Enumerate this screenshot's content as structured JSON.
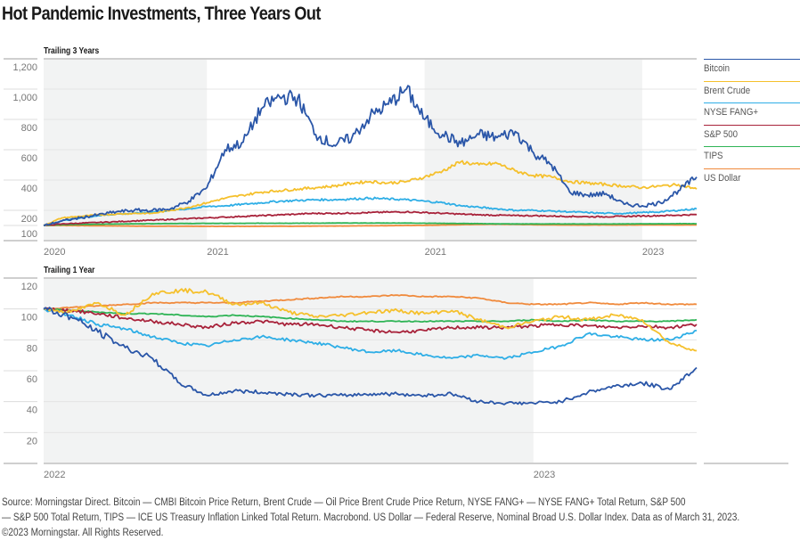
{
  "title": "Hot Pandemic Investments, Three Years Out",
  "legend": [
    {
      "name": "Bitcoin",
      "color": "#2a56a8"
    },
    {
      "name": "Brent Crude",
      "color": "#f5c02c"
    },
    {
      "name": "NYSE FANG+",
      "color": "#2eaee6"
    },
    {
      "name": "S&P 500",
      "color": "#a8223a"
    },
    {
      "name": "TIPS",
      "color": "#2fb456"
    },
    {
      "name": "US Dollar",
      "color": "#f08a3c"
    }
  ],
  "footer": {
    "line1": "Source: Morningstar Direct. Bitcoin — CMBI Bitcoin Price Return, Brent Crude — Oil Price Brent Crude Price Return, NYSE FANG+ — NYSE FANG+ Total Return, S&P 500",
    "line2": "— S&P 500 Total Return, TIPS — ICE US Treasury Inflation Linked Total Return. Macrobond. US Dollar — Federal Reserve, Nominal Broad U.S. Dollar Index. Data as of March 31, 2023.",
    "line3": "©2023 Morningstar. All Rights Reserved."
  },
  "chart_data": [
    {
      "type": "line",
      "title": "Trailing 3 Years",
      "xlabel": "",
      "ylabel": "",
      "x_ticks": [
        "2020",
        "2021",
        "2021",
        "2023"
      ],
      "x_range": [
        0,
        36
      ],
      "x_tick_positions": [
        0,
        9,
        21,
        33
      ],
      "shaded_bands": [
        [
          0,
          9
        ],
        [
          21,
          33
        ]
      ],
      "y_ticks": [
        100,
        200,
        400,
        600,
        800,
        1000,
        1200
      ],
      "ylim": [
        0,
        1200
      ],
      "grid": true,
      "legend_position": "right",
      "x": [
        0,
        1,
        2,
        3,
        4,
        5,
        6,
        7,
        8,
        9,
        10,
        11,
        12,
        13,
        14,
        15,
        16,
        17,
        18,
        19,
        20,
        21,
        22,
        23,
        24,
        25,
        26,
        27,
        28,
        29,
        30,
        31,
        32,
        33,
        34,
        35,
        36
      ],
      "series": [
        {
          "name": "Bitcoin",
          "values": [
            100,
            130,
            150,
            170,
            190,
            200,
            200,
            210,
            260,
            350,
            600,
            650,
            870,
            950,
            940,
            700,
            630,
            680,
            820,
            900,
            1000,
            800,
            700,
            640,
            700,
            680,
            720,
            580,
            500,
            320,
            300,
            310,
            240,
            230,
            250,
            330,
            420
          ]
        },
        {
          "name": "Brent Crude",
          "values": [
            100,
            150,
            160,
            170,
            175,
            180,
            180,
            200,
            220,
            250,
            280,
            300,
            320,
            330,
            340,
            350,
            360,
            380,
            390,
            380,
            390,
            420,
            460,
            520,
            500,
            510,
            460,
            430,
            420,
            390,
            380,
            370,
            360,
            350,
            360,
            370,
            340
          ]
        },
        {
          "name": "NYSE FANG+",
          "values": [
            100,
            130,
            150,
            165,
            175,
            180,
            190,
            200,
            210,
            225,
            230,
            240,
            250,
            260,
            265,
            270,
            270,
            275,
            280,
            275,
            270,
            260,
            250,
            230,
            220,
            210,
            200,
            200,
            195,
            190,
            185,
            180,
            180,
            185,
            190,
            200,
            210
          ]
        },
        {
          "name": "S&P 500",
          "values": [
            100,
            110,
            115,
            120,
            125,
            130,
            135,
            140,
            145,
            150,
            155,
            160,
            165,
            170,
            175,
            180,
            180,
            182,
            185,
            188,
            190,
            185,
            180,
            175,
            170,
            168,
            165,
            165,
            162,
            160,
            158,
            158,
            160,
            163,
            165,
            168,
            172
          ]
        },
        {
          "name": "TIPS",
          "values": [
            100,
            105,
            107,
            108,
            110,
            111,
            112,
            113,
            113,
            114,
            114,
            114,
            115,
            115,
            115,
            115,
            116,
            116,
            116,
            116,
            116,
            115,
            114,
            113,
            112,
            111,
            110,
            110,
            110,
            110,
            110,
            110,
            110,
            111,
            111,
            112,
            112
          ]
        },
        {
          "name": "US Dollar",
          "values": [
            100,
            100,
            99,
            98,
            97,
            96,
            95,
            95,
            95,
            94,
            94,
            94,
            95,
            95,
            95,
            96,
            96,
            97,
            98,
            99,
            100,
            101,
            103,
            105,
            107,
            108,
            107,
            105,
            104,
            103,
            103,
            103,
            103,
            104,
            104,
            103,
            104
          ]
        }
      ]
    },
    {
      "type": "line",
      "title": "Trailing 1 Year",
      "xlabel": "",
      "ylabel": "",
      "x_ticks": [
        "2022",
        "2023"
      ],
      "x_range": [
        0,
        12
      ],
      "x_tick_positions": [
        0,
        9
      ],
      "shaded_bands": [
        [
          0,
          9
        ]
      ],
      "y_ticks": [
        20,
        40,
        60,
        80,
        100,
        120
      ],
      "ylim": [
        0,
        120
      ],
      "grid": true,
      "legend_position": "right",
      "x": [
        0,
        0.5,
        1,
        1.5,
        2,
        2.5,
        3,
        3.5,
        4,
        4.5,
        5,
        5.5,
        6,
        6.5,
        7,
        7.5,
        8,
        8.5,
        9,
        9.5,
        10,
        10.5,
        11,
        11.5,
        12
      ],
      "series": [
        {
          "name": "Bitcoin",
          "values": [
            100,
            95,
            85,
            75,
            68,
            52,
            44,
            47,
            46,
            45,
            44,
            44,
            45,
            45,
            44,
            45,
            40,
            39,
            39,
            40,
            46,
            50,
            52,
            48,
            62
          ]
        },
        {
          "name": "Brent Crude",
          "values": [
            100,
            98,
            104,
            96,
            110,
            112,
            111,
            103,
            104,
            98,
            95,
            96,
            98,
            99,
            97,
            99,
            93,
            88,
            92,
            95,
            93,
            96,
            93,
            78,
            73
          ]
        },
        {
          "name": "NYSE FANG+",
          "values": [
            100,
            96,
            90,
            87,
            82,
            78,
            76,
            80,
            82,
            80,
            78,
            75,
            72,
            73,
            70,
            68,
            70,
            68,
            72,
            76,
            84,
            82,
            80,
            80,
            86
          ]
        },
        {
          "name": "S&P 500",
          "values": [
            100,
            99,
            97,
            94,
            92,
            90,
            88,
            91,
            92,
            90,
            90,
            88,
            86,
            85,
            86,
            88,
            88,
            88,
            89,
            90,
            89,
            88,
            89,
            88,
            90
          ]
        },
        {
          "name": "TIPS",
          "values": [
            100,
            99,
            98,
            97,
            97,
            96,
            95,
            96,
            95,
            94,
            93,
            92,
            92,
            92,
            92,
            92,
            92,
            92,
            93,
            92,
            93,
            92,
            92,
            92,
            93
          ]
        },
        {
          "name": "US Dollar",
          "values": [
            100,
            101,
            102,
            103,
            104,
            104,
            104,
            104,
            105,
            106,
            107,
            108,
            108,
            109,
            108,
            108,
            107,
            104,
            103,
            103,
            104,
            103,
            104,
            103,
            103
          ]
        }
      ]
    }
  ]
}
